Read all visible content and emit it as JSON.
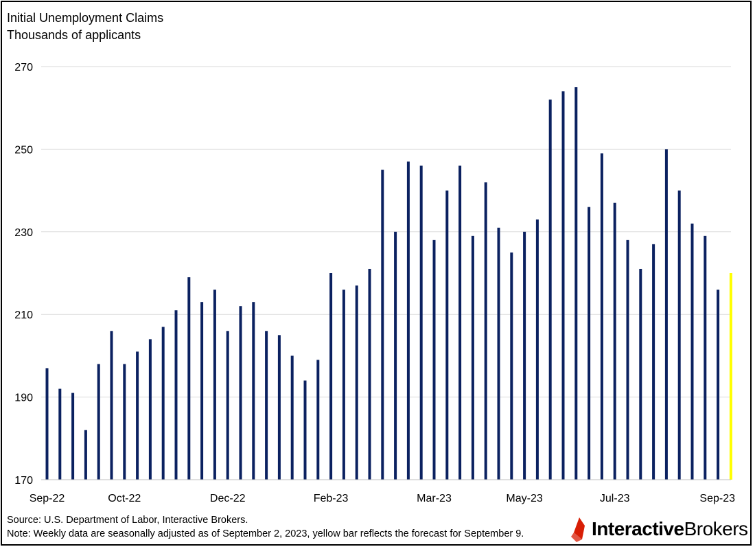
{
  "chart_data": {
    "type": "bar",
    "title": "Initial Unemployment Claims",
    "subtitle": "Thousands of applicants",
    "ylim": [
      170,
      270
    ],
    "yticks": [
      170,
      190,
      210,
      230,
      250,
      270
    ],
    "grid": true,
    "legend": "none",
    "x_tick_labels": [
      "Sep-22",
      "Oct-22",
      "Dec-22",
      "Feb-23",
      "Mar-23",
      "May-23",
      "Jul-23",
      "Sep-23"
    ],
    "x_tick_positions": [
      0,
      6,
      14,
      22,
      30,
      37,
      44,
      51
    ],
    "values": [
      197,
      192,
      191,
      182,
      198,
      206,
      198,
      201,
      204,
      207,
      211,
      219,
      213,
      216,
      206,
      212,
      213,
      206,
      205,
      200,
      194,
      199,
      220,
      216,
      217,
      221,
      245,
      230,
      247,
      246,
      228,
      240,
      246,
      229,
      242,
      231,
      225,
      230,
      233,
      262,
      264,
      265,
      236,
      249,
      237,
      228,
      221,
      227,
      250,
      240,
      232,
      229,
      216,
      220
    ],
    "forecast_index": 53,
    "colors": {
      "bar": "#0b2160",
      "forecast": "#ffff00",
      "grid": "#d9d9d9"
    }
  },
  "footer": {
    "source": "Source: U.S. Department of Labor, Interactive Brokers.",
    "note": "Note: Weekly data are seasonally adjusted as of September 2, 2023, yellow bar reflects the forecast for September 9."
  },
  "logo": {
    "part1": "Interactive",
    "part2": "Brokers",
    "accent_color": "#d81e05"
  }
}
